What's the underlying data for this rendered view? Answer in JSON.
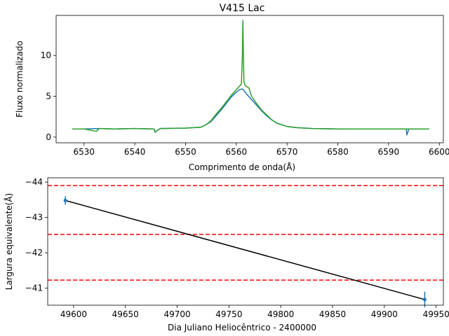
{
  "chart_data": [
    {
      "type": "line",
      "title": "V415 Lac",
      "xlabel": "Comprimento de onda(Å)",
      "ylabel": "Fluxo normalizado",
      "xlim": [
        6524.5,
        6600.8
      ],
      "ylim": [
        -0.7,
        14.9
      ],
      "xticks": [
        6530,
        6540,
        6550,
        6560,
        6570,
        6580,
        6590,
        6600
      ],
      "yticks": [
        0,
        5,
        10
      ],
      "grid": false,
      "series": [
        {
          "color": "#1f77b4",
          "x": [
            6527.7,
            6530,
            6533,
            6536,
            6540,
            6543.8,
            6544,
            6545,
            6550,
            6553,
            6554,
            6555,
            6556,
            6557,
            6558,
            6559,
            6560,
            6560.6,
            6561.2,
            6561.5,
            6562,
            6563,
            6564,
            6565,
            6566,
            6567,
            6568,
            6569,
            6570,
            6572,
            6575,
            6580,
            6585,
            6590,
            6593.5,
            6593.6,
            6594,
            6598
          ],
          "y": [
            1.0,
            1.0,
            1.05,
            1.0,
            1.05,
            1.0,
            0.6,
            1.05,
            1.1,
            1.2,
            1.5,
            1.9,
            2.6,
            3.3,
            4.1,
            4.9,
            5.5,
            5.8,
            5.9,
            5.7,
            5.3,
            4.6,
            3.9,
            3.2,
            2.6,
            2.1,
            1.7,
            1.5,
            1.3,
            1.15,
            1.05,
            1.0,
            1.0,
            1.0,
            1.0,
            0.25,
            1.0,
            1.0
          ]
        },
        {
          "color": "#2ca02c",
          "x": [
            6527.7,
            6530,
            6532.4,
            6533,
            6536,
            6540,
            6543.8,
            6544,
            6545,
            6550,
            6553,
            6554,
            6555,
            6556,
            6557,
            6558,
            6559,
            6560,
            6561,
            6561.2,
            6561.3,
            6561.4,
            6561.5,
            6561.7,
            6562,
            6562.5,
            6563,
            6564,
            6565,
            6566,
            6567,
            6568,
            6569,
            6570,
            6572,
            6575,
            6580,
            6585,
            6590,
            6593.5,
            6598
          ],
          "y": [
            1.0,
            1.0,
            0.7,
            1.05,
            1.0,
            1.05,
            1.0,
            0.6,
            1.05,
            1.1,
            1.2,
            1.5,
            2.0,
            2.8,
            3.5,
            4.3,
            5.1,
            5.8,
            6.5,
            10.0,
            14.3,
            10.0,
            6.8,
            6.4,
            6.2,
            6.0,
            5.0,
            4.1,
            3.3,
            2.7,
            2.1,
            1.7,
            1.5,
            1.3,
            1.15,
            1.05,
            1.0,
            1.0,
            1.0,
            1.0,
            1.0
          ]
        }
      ]
    },
    {
      "type": "line",
      "xlabel": "Dia Juliano Heliocêntrico - 2400000",
      "ylabel": "Largura equivalente(Å)",
      "xlim": [
        49575,
        49957
      ],
      "ylim": [
        -40.52,
        -44.12
      ],
      "inverted_y": true,
      "xticks": [
        49600,
        49650,
        49700,
        49750,
        49800,
        49850,
        49900,
        49950
      ],
      "yticks": [
        -41,
        -42,
        -43,
        -44
      ],
      "grid": false,
      "points": [
        {
          "x": 49592,
          "y": -43.48,
          "err": 0.12
        },
        {
          "x": 49939,
          "y": -40.68,
          "err": 0.22
        }
      ],
      "fit_line": {
        "x": [
          49592,
          49939
        ],
        "y": [
          -43.48,
          -40.68
        ],
        "color": "#000000"
      },
      "hlines": [
        {
          "y": -43.9,
          "color": "#ff0000",
          "style": "dashed"
        },
        {
          "y": -42.52,
          "color": "#ff0000",
          "style": "dashed"
        },
        {
          "y": -41.23,
          "color": "#ff0000",
          "style": "dashed"
        }
      ],
      "point_color": "#1f77b4"
    }
  ]
}
